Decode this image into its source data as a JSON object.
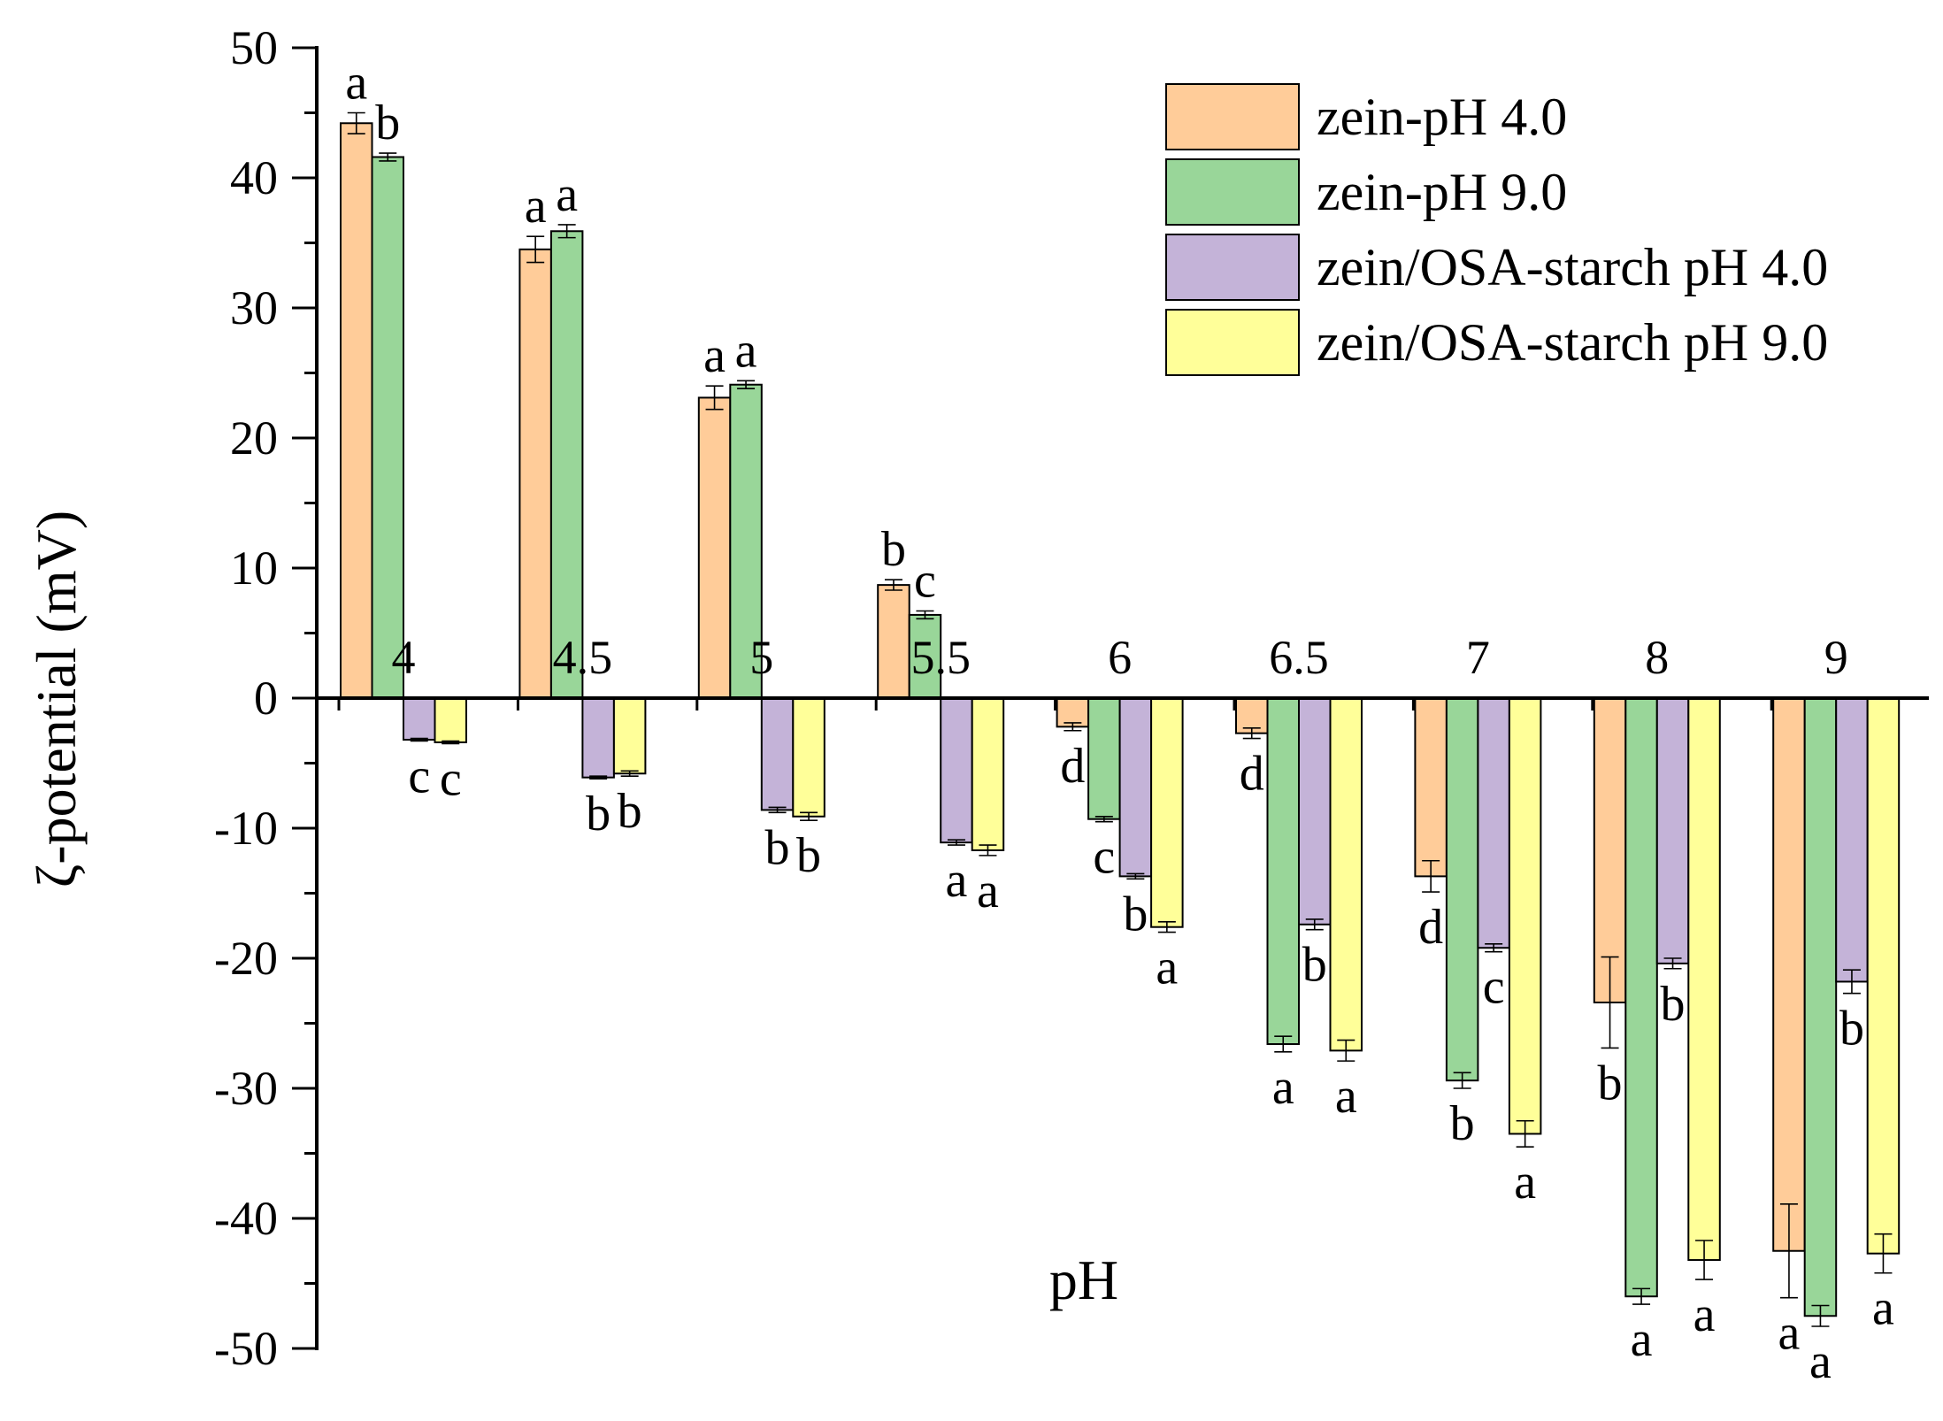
{
  "chart_data": {
    "type": "bar",
    "title": "",
    "xlabel": "pH",
    "ylabel": "ζ-potential (mV)",
    "ylim": [
      -50,
      50
    ],
    "yticks": [
      50,
      40,
      30,
      20,
      10,
      0,
      -10,
      -20,
      -30,
      -40,
      -50
    ],
    "categories": [
      "4",
      "4.5",
      "5",
      "5.5",
      "6",
      "6.5",
      "7",
      "8",
      "9"
    ],
    "series": [
      {
        "name": "zein-pH 4.0",
        "color": "#FFCC99",
        "values": [
          44.2,
          34.5,
          23.1,
          8.7,
          -2.2,
          -2.7,
          -13.7,
          -23.4,
          -42.5
        ],
        "errors": [
          0.8,
          1.0,
          0.9,
          0.4,
          0.3,
          0.4,
          1.2,
          3.5,
          3.6
        ],
        "labels": [
          "a",
          "a",
          "a",
          "b",
          "d",
          "d",
          "d",
          "b",
          "a"
        ]
      },
      {
        "name": "zein-pH 9.0",
        "color": "#99D699",
        "values": [
          41.6,
          35.9,
          24.1,
          6.4,
          -9.3,
          -26.6,
          -29.4,
          -46.0,
          -47.5
        ],
        "errors": [
          0.3,
          0.5,
          0.3,
          0.3,
          0.2,
          0.6,
          0.6,
          0.6,
          0.8
        ],
        "labels": [
          "b",
          "a",
          "a",
          "c",
          "c",
          "a",
          "b",
          "a",
          "a"
        ]
      },
      {
        "name": "zein/OSA-starch pH 4.0",
        "color": "#C4B3D8",
        "values": [
          -3.2,
          -6.1,
          -8.6,
          -11.1,
          -13.7,
          -17.4,
          -19.2,
          -20.4,
          -21.8
        ],
        "errors": [
          0.1,
          0.1,
          0.2,
          0.2,
          0.2,
          0.4,
          0.3,
          0.4,
          0.9
        ],
        "labels": [
          "c",
          "b",
          "b",
          "a",
          "b",
          "b",
          "c",
          "b",
          "b"
        ]
      },
      {
        "name": "zein/OSA-starch pH 9.0",
        "color": "#FFFF99",
        "values": [
          -3.4,
          -5.8,
          -9.1,
          -11.7,
          -17.6,
          -27.1,
          -33.5,
          -43.2,
          -42.7
        ],
        "errors": [
          0.1,
          0.2,
          0.3,
          0.4,
          0.4,
          0.8,
          1.0,
          1.5,
          1.5
        ],
        "labels": [
          "c",
          "b",
          "b",
          "a",
          "a",
          "a",
          "a",
          "a",
          "a"
        ]
      }
    ],
    "legend": "top-right",
    "grid": false
  }
}
